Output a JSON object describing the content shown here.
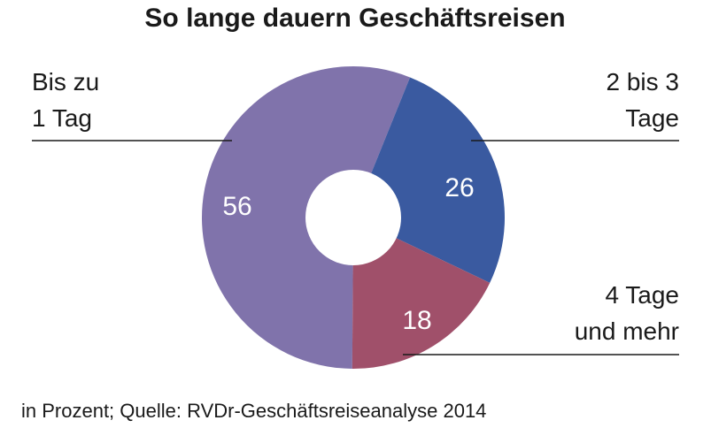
{
  "chart_data": {
    "type": "pie",
    "title": "So lange dauern Geschäftsreisen",
    "categories": [
      "Bis zu 1 Tag",
      "2 bis 3 Tage",
      "4 Tage und mehr"
    ],
    "values": [
      56,
      26,
      18
    ],
    "value_labels": [
      "56",
      "26",
      "18"
    ],
    "label_lines": [
      [
        "Bis zu",
        "1 Tag"
      ],
      [
        "2 bis 3",
        "Tage"
      ],
      [
        "4 Tage",
        "und mehr"
      ]
    ],
    "colors": [
      "#8073ab",
      "#3a5aa0",
      "#a0506a"
    ],
    "donut": true,
    "source_note": "in Prozent; Quelle: RVDr-Geschäftsreiseanalyse 2014"
  }
}
